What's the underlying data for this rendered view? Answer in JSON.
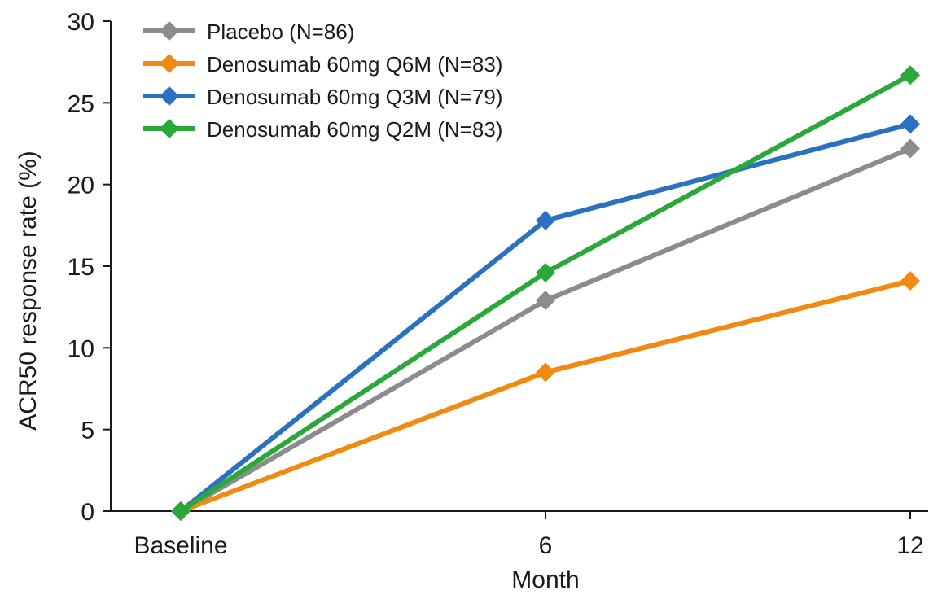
{
  "chart_data": {
    "type": "line",
    "xlabel": "Month",
    "ylabel": "ACR50 response rate (%)",
    "categories": [
      "Baseline",
      "6",
      "12"
    ],
    "ylim": [
      0,
      30
    ],
    "yticks": [
      0,
      5,
      10,
      15,
      20,
      25,
      30
    ],
    "grid": false,
    "legend_position": "top-left",
    "series": [
      {
        "name": "Placebo (N=86)",
        "color": "#8c8c8c",
        "values": [
          0,
          12.9,
          22.2
        ]
      },
      {
        "name": "Denosumab 60mg Q6M (N=83)",
        "color": "#f08a12",
        "values": [
          0,
          8.5,
          14.1
        ]
      },
      {
        "name": "Denosumab 60mg Q3M (N=79)",
        "color": "#2a72c0",
        "values": [
          0,
          17.8,
          23.7
        ]
      },
      {
        "name": "Denosumab 60mg Q2M (N=83)",
        "color": "#2aa83a",
        "values": [
          0,
          14.6,
          26.7
        ]
      }
    ]
  }
}
